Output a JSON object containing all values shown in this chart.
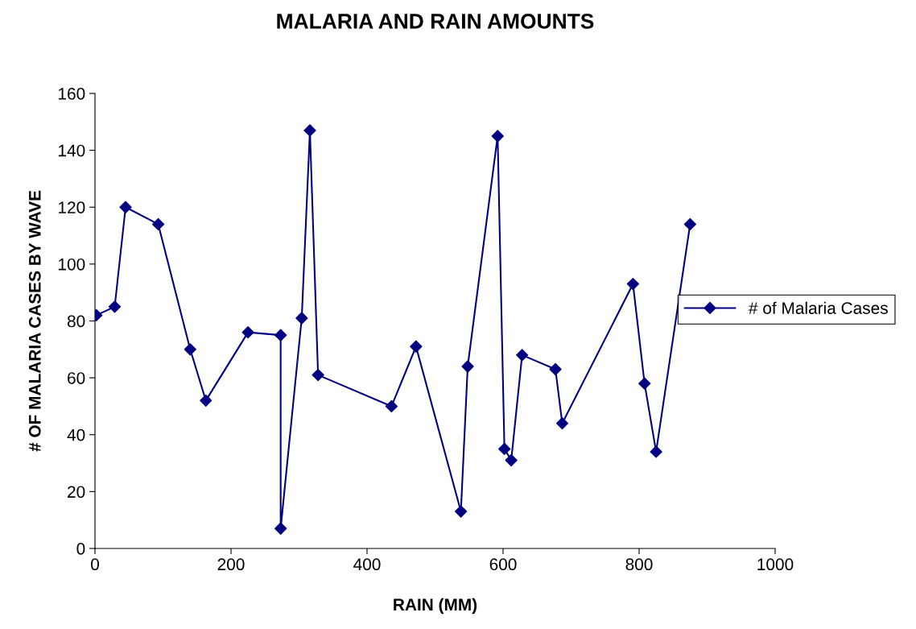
{
  "chart_data": {
    "type": "line",
    "title": "MALARIA AND RAIN AMOUNTS",
    "xlabel": "RAIN (MM)",
    "ylabel": "# OF MALARIA CASES BY WAVE",
    "x": [
      2,
      29,
      45,
      93,
      140,
      163,
      225,
      273,
      273,
      304,
      316,
      328,
      436,
      472,
      538,
      548,
      592,
      602,
      612,
      628,
      677,
      687,
      791,
      808,
      825,
      875
    ],
    "series": [
      {
        "name": "# of Malaria Cases",
        "color": "#000080",
        "values": [
          82,
          85,
          120,
          114,
          70,
          52,
          76,
          75,
          7,
          81,
          147,
          61,
          50,
          71,
          13,
          64,
          145,
          35,
          31,
          68,
          63,
          44,
          93,
          58,
          34,
          114
        ]
      }
    ],
    "xlim": [
      0,
      1000
    ],
    "xticks": [
      0,
      200,
      400,
      600,
      800,
      1000
    ],
    "ylim": [
      0,
      160
    ],
    "yticks": [
      0,
      20,
      40,
      60,
      80,
      100,
      120,
      140,
      160
    ],
    "grid": false,
    "legend": "right",
    "marker": "diamond",
    "line_style": "solid"
  }
}
